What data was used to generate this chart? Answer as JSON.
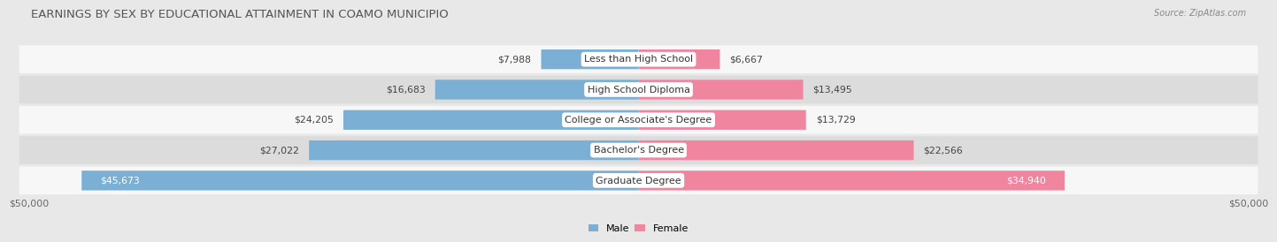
{
  "title": "EARNINGS BY SEX BY EDUCATIONAL ATTAINMENT IN COAMO MUNICIPIO",
  "source": "Source: ZipAtlas.com",
  "categories": [
    "Less than High School",
    "High School Diploma",
    "College or Associate's Degree",
    "Bachelor's Degree",
    "Graduate Degree"
  ],
  "male_values": [
    7988,
    16683,
    24205,
    27022,
    45673
  ],
  "female_values": [
    6667,
    13495,
    13729,
    22566,
    34940
  ],
  "male_color": "#7bafd4",
  "female_color": "#f085a0",
  "male_label": "Male",
  "female_label": "Female",
  "xlim": 50000,
  "bar_height": 0.65,
  "background_color": "#e8e8e8",
  "row_bg_even": "#f7f7f7",
  "row_bg_odd": "#dcdcdc",
  "title_fontsize": 9.5,
  "label_fontsize": 8.0,
  "value_fontsize": 7.8,
  "axis_tick_labels": [
    "$50,000",
    "$50,000"
  ]
}
